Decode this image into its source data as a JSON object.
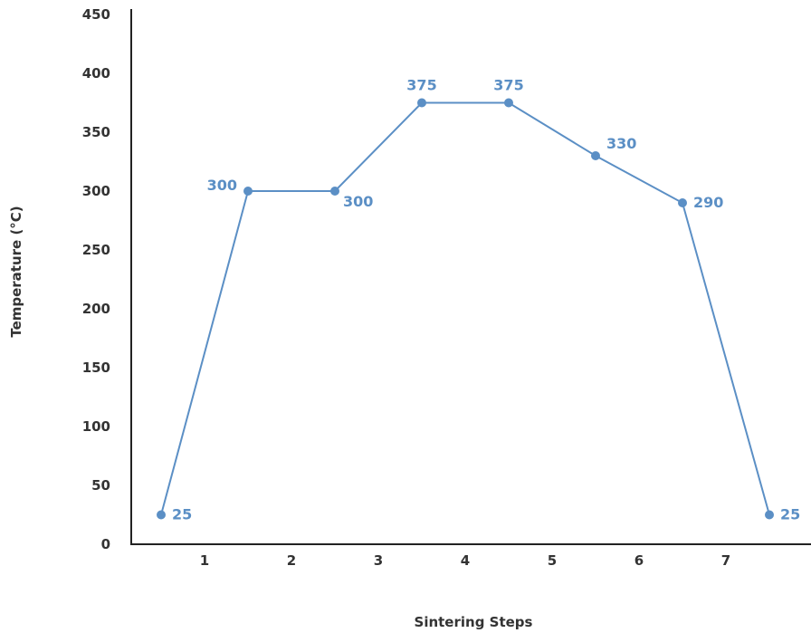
{
  "chart_data": {
    "type": "line",
    "title": "",
    "xlabel": "Sintering Steps",
    "ylabel": "Temperature (°C)",
    "categories": [
      "1",
      "2",
      "3",
      "4",
      "5",
      "6",
      "7"
    ],
    "yticks": [
      "0",
      "50",
      "100",
      "150",
      "200",
      "250",
      "300",
      "350",
      "400",
      "450"
    ],
    "ylim": [
      0,
      450
    ],
    "grid": false,
    "legend": "none",
    "color": "#5b8fc5",
    "series": [
      {
        "x": [
          0.5,
          1.5,
          2.5,
          3.5,
          4.5,
          5.5,
          6.5,
          7.5
        ],
        "values": [
          25,
          300,
          300,
          375,
          375,
          330,
          290,
          25
        ],
        "labels": [
          "25",
          "300",
          "300",
          "375",
          "375",
          "330",
          "290",
          "25"
        ]
      }
    ]
  }
}
